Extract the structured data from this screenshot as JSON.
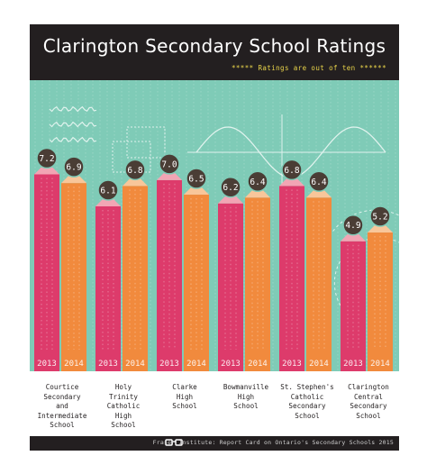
{
  "title": "Clarington Secondary School Ratings",
  "subtitle": "***** Ratings are out of ten ******",
  "source": "Fraser Institute: Report Card on Ontario's Secondary Schools 2015",
  "colors": {
    "y2013": "#dd3b6b",
    "y2014": "#f18a3d",
    "background": "#7fcbb7",
    "header": "#231f20"
  },
  "chart_data": {
    "type": "bar",
    "title": "Clarington Secondary School Ratings",
    "ylim": [
      0,
      10
    ],
    "categories": [
      "Courtice Secondary and Intermediate School",
      "Holy Trinity Catholic High School",
      "Clarke High School",
      "Bowmanville High School",
      "St. Stephen's Catholic Secondary School",
      "Clarington Central Secondary School"
    ],
    "category_labels": [
      "Courtice\nSecondary\nand\nIntermediate\nSchool",
      "Holy\nTrinity\nCatholic\nHigh\nSchool",
      "Clarke\nHigh\nSchool",
      "Bowmanville\nHigh\nSchool",
      "St. Stephen's\nCatholic\nSecondary\nSchool",
      "Clarington\nCentral\nSecondary\nSchool"
    ],
    "series": [
      {
        "name": "2013",
        "values": [
          7.2,
          6.1,
          7.0,
          6.2,
          6.8,
          4.9
        ]
      },
      {
        "name": "2014",
        "values": [
          6.9,
          6.8,
          6.5,
          6.4,
          6.4,
          5.2
        ]
      }
    ]
  }
}
